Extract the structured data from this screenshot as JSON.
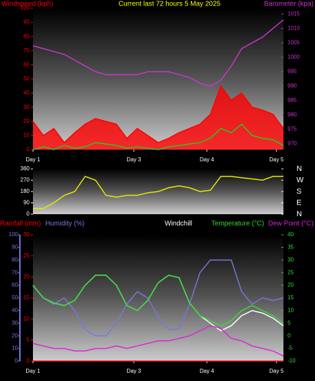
{
  "chart_data": [
    {
      "type": "line",
      "title": "Current last 72 hours 5 May 2025",
      "x": [
        0,
        3,
        6,
        9,
        12,
        15,
        18,
        21,
        24,
        27,
        30,
        33,
        36,
        39,
        42,
        45,
        48,
        51,
        54,
        57,
        60,
        63,
        66,
        69,
        72
      ],
      "xlim": [
        0,
        72
      ],
      "xticks": [
        {
          "value": 0,
          "label": "Day 1"
        },
        {
          "value": 29,
          "label": "Day 3"
        },
        {
          "value": 50,
          "label": "Day 4"
        },
        {
          "value": 70,
          "label": "Day 5"
        }
      ],
      "ylim": [
        0,
        100
      ],
      "yticks": [
        0,
        10,
        20,
        30,
        40,
        50,
        60,
        70,
        80,
        90,
        100
      ],
      "y2lim": [
        968,
        1017
      ],
      "y2ticks": [
        970,
        975,
        980,
        985,
        990,
        995,
        1000,
        1005,
        1010,
        1015
      ],
      "series": [
        {
          "name": "Windspeed (kph)",
          "color": "#ff0000",
          "area": true,
          "values": [
            20,
            10,
            15,
            5,
            12,
            18,
            22,
            20,
            18,
            8,
            15,
            10,
            5,
            8,
            12,
            15,
            18,
            25,
            45,
            35,
            40,
            30,
            28,
            25,
            15
          ]
        },
        {
          "color": "#22cc22",
          "values": [
            0,
            2,
            0,
            3,
            1,
            2,
            5,
            4,
            3,
            1,
            2,
            1,
            0,
            2,
            3,
            4,
            5,
            8,
            15,
            12,
            18,
            10,
            8,
            7,
            3
          ]
        },
        {
          "name": "Barometer (kpa)",
          "color": "#cc33cc",
          "axis": "y2",
          "values": [
            1004,
            1003,
            1002,
            1001,
            999,
            997,
            995,
            994,
            994,
            994,
            994,
            995,
            995,
            995,
            994,
            993,
            991,
            990,
            992,
            997,
            1003,
            1005,
            1007,
            1010,
            1013
          ]
        }
      ]
    },
    {
      "type": "line",
      "x": [
        0,
        3,
        6,
        9,
        12,
        15,
        18,
        21,
        24,
        27,
        30,
        33,
        36,
        39,
        42,
        45,
        48,
        51,
        54,
        57,
        60,
        63,
        66,
        69,
        72
      ],
      "xlim": [
        0,
        72
      ],
      "ylim": [
        0,
        360
      ],
      "yticks": [
        0,
        90,
        180,
        270,
        360
      ],
      "y2lim": [
        0,
        360
      ],
      "y2ticks": [
        {
          "value": 360,
          "label": "N"
        },
        {
          "value": 270,
          "label": "W"
        },
        {
          "value": 180,
          "label": "S"
        },
        {
          "value": 90,
          "label": "E"
        },
        {
          "value": 0,
          "label": "N"
        }
      ],
      "series": [
        {
          "color": "#e8e800",
          "values": [
            45,
            45,
            90,
            150,
            180,
            300,
            270,
            150,
            135,
            150,
            150,
            170,
            180,
            210,
            225,
            210,
            180,
            190,
            300,
            300,
            290,
            280,
            270,
            300,
            300
          ]
        }
      ]
    },
    {
      "type": "line",
      "x": [
        0,
        3,
        6,
        9,
        12,
        15,
        18,
        21,
        24,
        27,
        30,
        33,
        36,
        39,
        42,
        45,
        48,
        51,
        54,
        57,
        60,
        63,
        66,
        69,
        72
      ],
      "xlim": [
        0,
        72
      ],
      "xticks": [
        {
          "value": 0,
          "label": "Day 1"
        },
        {
          "value": 29,
          "label": "Day 3"
        },
        {
          "value": 50,
          "label": "Day 4"
        },
        {
          "value": 70,
          "label": "Day 5"
        }
      ],
      "ylim": [
        0,
        30
      ],
      "yticks": [
        0,
        5,
        10,
        15,
        20,
        25,
        30
      ],
      "y3lim": [
        0,
        100
      ],
      "y3ticks": [
        0,
        10,
        20,
        30,
        40,
        50,
        60,
        70,
        80,
        90,
        100
      ],
      "y2lim": [
        -10,
        40
      ],
      "y2ticks": [
        -10,
        -5,
        0,
        5,
        10,
        15,
        20,
        25,
        30,
        35,
        40
      ],
      "series": [
        {
          "name": "Rainfall (mm)",
          "color": "#ff0000",
          "values": [
            0,
            0,
            0,
            0,
            0,
            0,
            0,
            0,
            0,
            0,
            0,
            0,
            0,
            0,
            0,
            0,
            0,
            0,
            0,
            0,
            0,
            0,
            0,
            0,
            0
          ]
        },
        {
          "name": "Humidity (%)",
          "color": "#7777dd",
          "axis": "y3",
          "values": [
            60,
            50,
            45,
            50,
            40,
            25,
            20,
            20,
            30,
            45,
            55,
            50,
            35,
            25,
            25,
            45,
            70,
            80,
            80,
            80,
            55,
            45,
            50,
            48,
            50
          ]
        },
        {
          "name": "Windchill",
          "color": "#ffffff",
          "axis": "y2",
          "values": [
            20,
            15,
            13,
            12,
            14,
            20,
            24,
            24,
            20,
            12,
            10,
            14,
            21,
            24,
            23,
            13,
            8,
            5,
            2,
            4,
            8,
            10,
            9,
            7,
            4
          ]
        },
        {
          "name": "Temperature (°C)",
          "color": "#33dd33",
          "axis": "y2",
          "values": [
            20,
            15,
            13,
            12,
            14,
            20,
            24,
            24,
            20,
            12,
            10,
            14,
            21,
            24,
            23,
            13,
            8,
            6,
            4,
            6,
            10,
            12,
            10,
            8,
            5
          ]
        },
        {
          "name": "Dew Point (°C)",
          "color": "#dd22dd",
          "axis": "y2",
          "values": [
            -3,
            -4,
            -5,
            -5,
            -6,
            -6,
            -5,
            -5,
            -4,
            -5,
            -4,
            -3,
            -2,
            -2,
            -1,
            0,
            2,
            4,
            3,
            -1,
            -2,
            -4,
            -5,
            -6,
            -8
          ]
        }
      ]
    }
  ]
}
